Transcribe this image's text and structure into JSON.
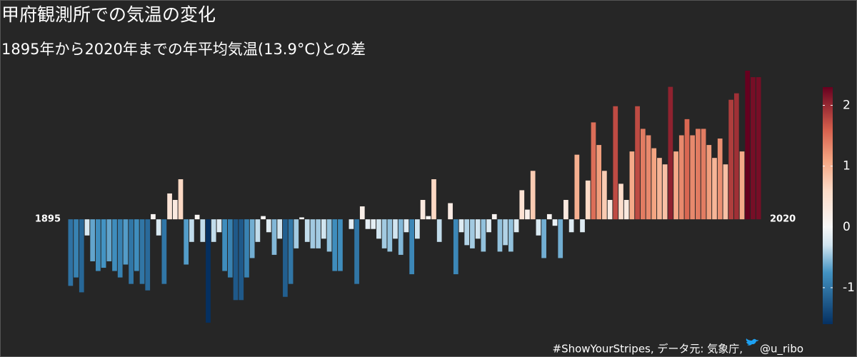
{
  "chart_data": {
    "type": "bar",
    "title": "甲府観測所での気温の変化",
    "subtitle": "1895年から2020年までの年平均気温(13.9°C)との差",
    "caption": "#ShowYourStripes, データ元: 気象庁,",
    "handle": "@u_ribo",
    "categories": [
      "1895",
      null,
      null,
      null,
      null,
      null,
      null,
      null,
      null,
      null,
      null,
      null,
      null,
      null,
      null,
      null,
      null,
      null,
      null,
      null,
      null,
      null,
      null,
      null,
      null,
      null,
      null,
      null,
      null,
      null,
      null,
      null,
      null,
      null,
      null,
      null,
      null,
      null,
      null,
      null,
      null,
      null,
      null,
      null,
      null,
      null,
      null,
      null,
      null,
      null,
      null,
      null,
      null,
      null,
      null,
      null,
      null,
      null,
      null,
      null,
      null,
      null,
      null,
      null,
      null,
      null,
      null,
      null,
      null,
      null,
      null,
      null,
      null,
      null,
      null,
      null,
      null,
      null,
      null,
      null,
      null,
      null,
      null,
      null,
      null,
      null,
      null,
      null,
      null,
      null,
      null,
      null,
      null,
      null,
      null,
      null,
      null,
      null,
      null,
      null,
      null,
      null,
      null,
      null,
      null,
      null,
      null,
      null,
      null,
      null,
      null,
      null,
      null,
      null,
      null,
      null,
      null,
      null,
      null,
      null,
      null,
      null,
      null,
      null,
      null,
      "2020"
    ],
    "values": [
      -1.03,
      -0.9,
      -1.13,
      -0.25,
      -0.65,
      -0.8,
      -0.75,
      -0.65,
      -0.8,
      -0.9,
      -0.7,
      -1.0,
      -0.8,
      -1.0,
      -1.1,
      0.08,
      -0.25,
      -1.0,
      0.4,
      0.3,
      0.62,
      -0.7,
      -0.35,
      0.07,
      -0.35,
      -1.6,
      -0.35,
      -0.2,
      -0.8,
      -0.9,
      -1.25,
      -1.25,
      -0.9,
      -0.6,
      -0.35,
      0.05,
      -0.2,
      -0.55,
      -0.3,
      -1.2,
      -1.0,
      -0.45,
      0.03,
      -0.35,
      -0.45,
      -0.45,
      -0.3,
      -0.5,
      -0.8,
      -0.8,
      0.0,
      -0.15,
      -1.0,
      0.2,
      -0.15,
      -0.15,
      -0.3,
      -0.45,
      -0.5,
      -0.3,
      -0.55,
      -0.2,
      -0.85,
      -0.3,
      0.3,
      0.05,
      0.62,
      -0.35,
      0.0,
      0.25,
      -0.85,
      -0.2,
      -0.4,
      -0.45,
      -0.3,
      -0.5,
      -0.2,
      0.08,
      -0.5,
      -0.4,
      -0.5,
      -0.2,
      0.45,
      0.15,
      0.75,
      -0.25,
      -0.6,
      0.08,
      -0.1,
      -0.6,
      0.3,
      -0.2,
      1.0,
      -0.2,
      0.6,
      1.5,
      1.15,
      0.75,
      0.3,
      1.75,
      0.55,
      0.3,
      1.05,
      1.75,
      1.4,
      1.3,
      1.1,
      0.95,
      0.85,
      2.05,
      1.05,
      1.3,
      1.55,
      1.3,
      1.4,
      1.4,
      1.15,
      0.95,
      1.25,
      0.85,
      1.85,
      1.95,
      1.05,
      2.3,
      2.2,
      2.2
    ],
    "ylim": [
      -1.7,
      2.3
    ],
    "colorbar_lim": [
      -1.6,
      2.3
    ],
    "colorbar_ticks": [
      -1,
      0,
      1,
      2
    ],
    "colorscale": [
      [
        -1.6,
        "#053061"
      ],
      [
        -0.75,
        "#4393c3"
      ],
      [
        -0.3,
        "#d1e5f0"
      ],
      [
        0,
        "#f7f7f7"
      ],
      [
        0.6,
        "#fddbc7"
      ],
      [
        1.1,
        "#f4a582"
      ],
      [
        1.6,
        "#d6604d"
      ],
      [
        2.3,
        "#67001f"
      ]
    ],
    "background": "#262626"
  }
}
